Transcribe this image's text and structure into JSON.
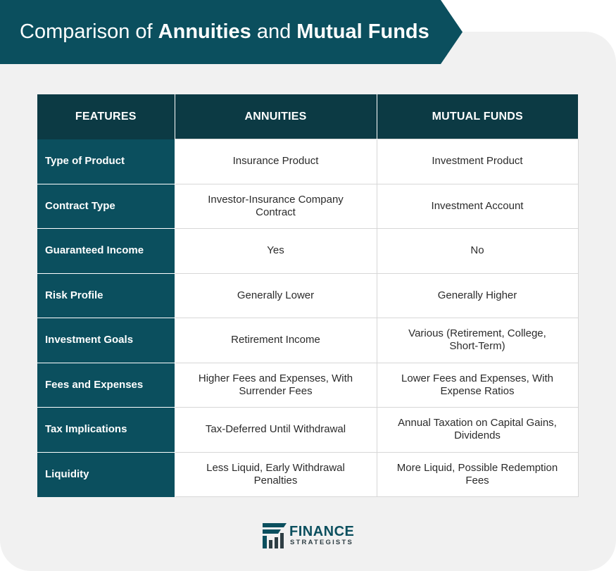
{
  "title": {
    "prefix": "Comparison of ",
    "bold1": "Annuities",
    "middle": " and ",
    "bold2": "Mutual Funds"
  },
  "table": {
    "headers": [
      "FEATURES",
      "ANNUITIES",
      "MUTUAL FUNDS"
    ],
    "rows": [
      {
        "feature": "Type of Product",
        "annuities": "Insurance Product",
        "mutual_funds": "Investment Product"
      },
      {
        "feature": "Contract Type",
        "annuities": "Investor-Insurance Company Contract",
        "mutual_funds": "Investment Account"
      },
      {
        "feature": "Guaranteed Income",
        "annuities": "Yes",
        "mutual_funds": "No"
      },
      {
        "feature": "Risk Profile",
        "annuities": "Generally Lower",
        "mutual_funds": "Generally Higher"
      },
      {
        "feature": "Investment Goals",
        "annuities": "Retirement Income",
        "mutual_funds": "Various (Retirement, College, Short-Term)"
      },
      {
        "feature": "Fees and Expenses",
        "annuities": "Higher Fees and Expenses, With Surrender Fees",
        "mutual_funds": "Lower Fees and Expenses, With Expense Ratios"
      },
      {
        "feature": "Tax Implications",
        "annuities": "Tax-Deferred Until Withdrawal",
        "mutual_funds": "Annual Taxation on Capital Gains, Dividends"
      },
      {
        "feature": "Liquidity",
        "annuities": "Less Liquid, Early Withdrawal Penalties",
        "mutual_funds": "More Liquid, Possible Redemption Fees"
      }
    ]
  },
  "logo": {
    "line1": "FINANCE",
    "line2": "STRATEGISTS",
    "icon": "finance-strategists-logo-icon"
  },
  "colors": {
    "header_dark": "#0c3a44",
    "feature_teal": "#0b4f5e",
    "card_bg": "#f1f1f1"
  }
}
